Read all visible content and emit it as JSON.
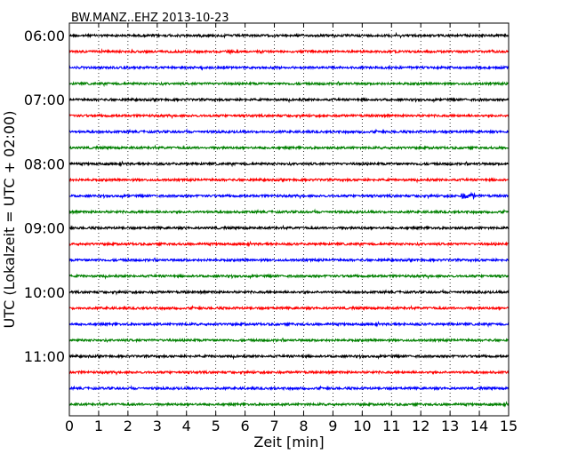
{
  "chart_data": {
    "type": "line",
    "title": "BW.MANZ..EHZ 2013-10-23",
    "xlabel": "Zeit  [min]",
    "ylabel": "UTC (Lokalzeit = UTC + 02:00)",
    "xlim": [
      0,
      15
    ],
    "x_ticks": [
      0,
      1,
      2,
      3,
      4,
      5,
      6,
      7,
      8,
      9,
      10,
      11,
      12,
      13,
      14,
      15
    ],
    "y_tick_labels": [
      "06:00",
      "07:00",
      "08:00",
      "09:00",
      "10:00",
      "11:00"
    ],
    "trace_offsets_min": [
      0,
      15,
      30,
      45,
      60,
      75,
      90,
      105,
      120,
      135,
      150,
      165,
      180,
      195,
      210,
      225,
      240,
      255,
      270,
      285,
      300,
      315,
      330,
      345
    ],
    "trace_color_cycle": [
      "#000000",
      "#ff0000",
      "#0000ff",
      "#008000"
    ],
    "vertical_grid": "dotted",
    "events": [
      {
        "trace": 10,
        "x": 13.6,
        "amplitude": "small"
      }
    ]
  }
}
